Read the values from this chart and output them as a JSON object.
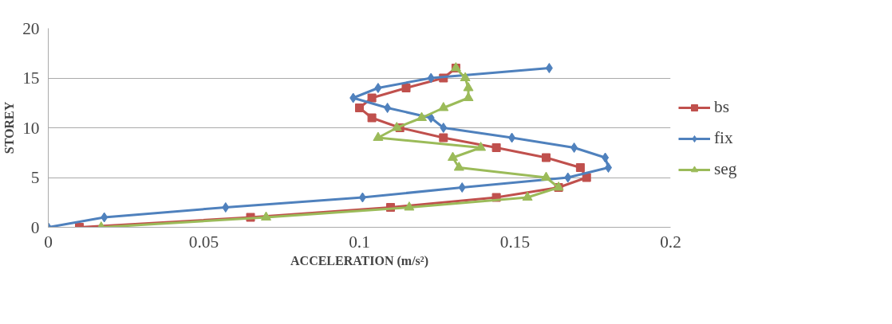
{
  "chart_data": {
    "type": "line",
    "xlabel": "ACCELERATION (m/s²)",
    "ylabel": "STOREY",
    "xlim": [
      0,
      0.2
    ],
    "xticks": [
      0,
      0.05,
      0.1,
      0.15,
      0.2
    ],
    "ylim": [
      0,
      20
    ],
    "yticks": [
      0,
      5,
      10,
      15,
      20
    ],
    "grid": "y",
    "legend": "right",
    "series": [
      {
        "name": "bs",
        "color": "#c0504d",
        "marker": "square",
        "x": [
          0.01,
          0.065,
          0.11,
          0.144,
          0.164,
          0.173,
          0.171,
          0.16,
          0.144,
          0.127,
          0.113,
          0.104,
          0.1,
          0.104,
          0.115,
          0.127,
          0.131
        ],
        "values": [
          0,
          1,
          2,
          3,
          4,
          5,
          6,
          7,
          8,
          9,
          10,
          11,
          12,
          13,
          14,
          15,
          16
        ]
      },
      {
        "name": "fix",
        "color": "#4f81bd",
        "marker": "diamond",
        "x": [
          0,
          0.018,
          0.057,
          0.101,
          0.133,
          0.167,
          0.18,
          0.179,
          0.169,
          0.149,
          0.127,
          0.123,
          0.109,
          0.098,
          0.106,
          0.123,
          0.161
        ],
        "values": [
          0,
          1,
          2,
          3,
          4,
          5,
          6,
          7,
          8,
          9,
          10,
          11,
          12,
          13,
          14,
          15,
          16
        ]
      },
      {
        "name": "seg",
        "color": "#9bbb59",
        "marker": "triangle",
        "x": [
          0.017,
          0.07,
          0.116,
          0.154,
          0.164,
          0.16,
          0.132,
          0.13,
          0.139,
          0.106,
          0.112,
          0.12,
          0.127,
          0.135,
          0.135,
          0.134,
          0.131
        ],
        "values": [
          0,
          1,
          2,
          3,
          4,
          5,
          6,
          7,
          8,
          9,
          10,
          11,
          12,
          13,
          14,
          15,
          16
        ]
      }
    ]
  }
}
